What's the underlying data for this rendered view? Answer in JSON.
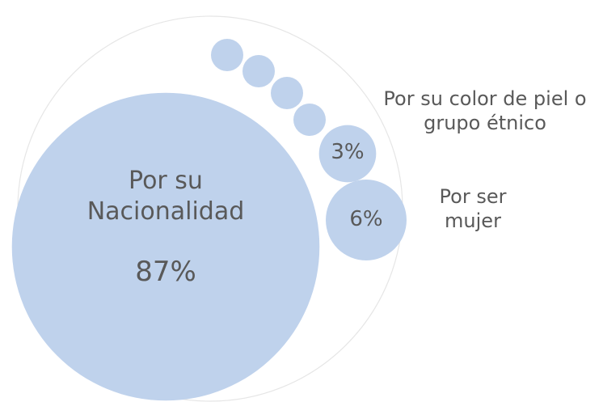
{
  "chart_data": {
    "type": "bubble",
    "categories": [
      "Por su Nacionalidad",
      "Por su color de piel o grupo étnico",
      "Por ser mujer"
    ],
    "values": [
      87,
      3,
      6
    ],
    "value_labels": [
      "87%",
      "3%",
      "6%"
    ],
    "color": "#bfd2ec"
  }
}
